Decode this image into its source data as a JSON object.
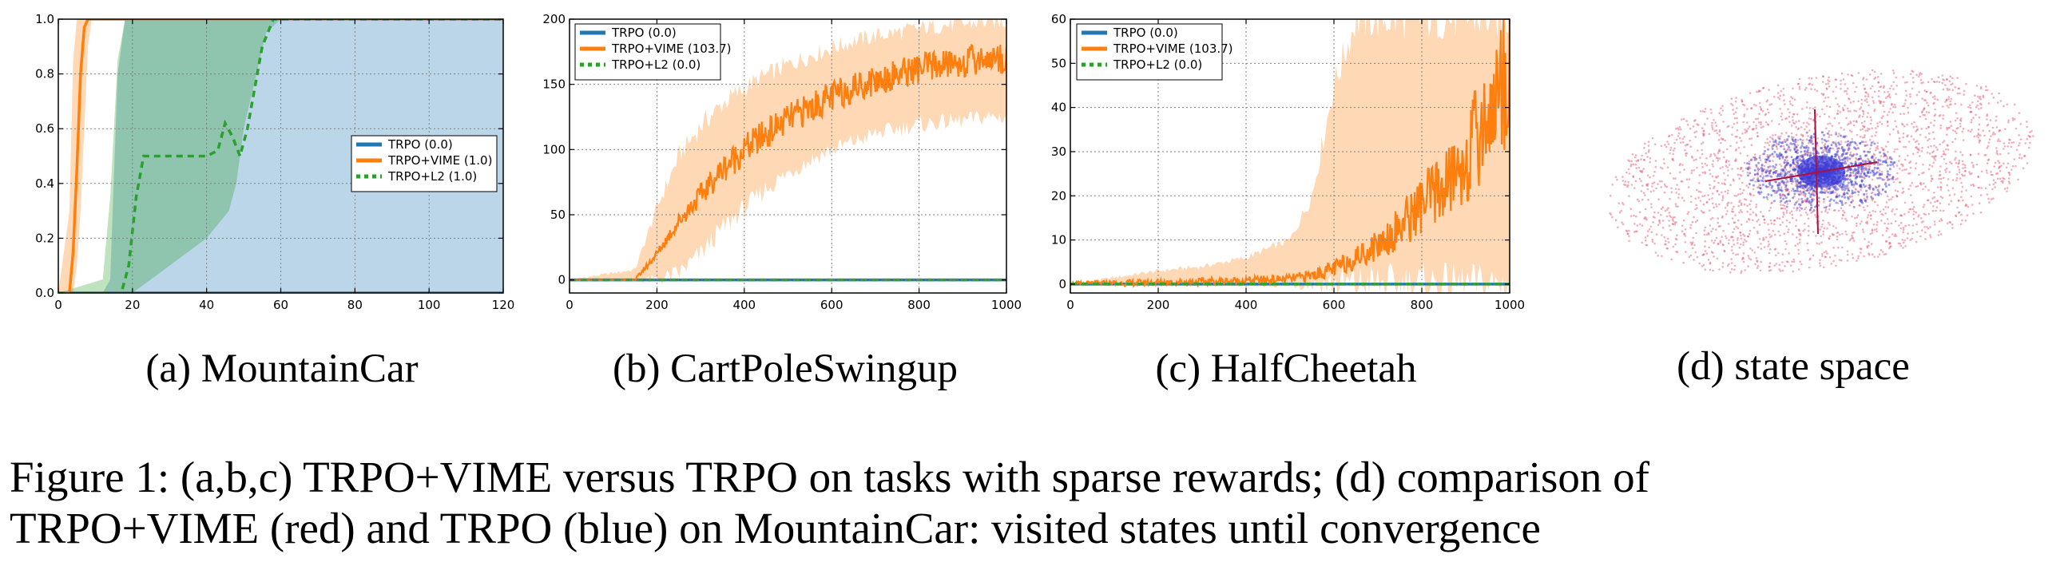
{
  "chart_data": [
    {
      "type": "line",
      "label": "(a) MountainCar",
      "xlim": [
        0,
        120
      ],
      "ylim": [
        0,
        1.0
      ],
      "xticks": [
        0,
        20,
        40,
        60,
        80,
        100,
        120
      ],
      "yticks": [
        0.0,
        0.2,
        0.4,
        0.6,
        0.8,
        1.0
      ],
      "grid": true,
      "legend_position": "center-right",
      "series": [
        {
          "name": "TRPO (0.0)",
          "color": "#1f77b4",
          "dash": false,
          "x": [
            0,
            120
          ],
          "y": [
            0,
            0
          ],
          "band_x": [
            0,
            12,
            14,
            16,
            18,
            20,
            50,
            52,
            120
          ],
          "band_lo": [
            0,
            0,
            0,
            0,
            0,
            0,
            0,
            0,
            0
          ],
          "band_hi": [
            0,
            0,
            0.05,
            0.8,
            1.0,
            1.0,
            1.0,
            1.0,
            1.0
          ]
        },
        {
          "name": "TRPO+VIME (1.0)",
          "color": "#ff7f0e",
          "dash": false,
          "x": [
            0,
            3,
            4,
            5,
            6,
            7,
            8,
            9,
            120
          ],
          "y": [
            0,
            0,
            0.15,
            0.45,
            0.8,
            0.97,
            1.0,
            1.0,
            1.0
          ],
          "band_x": [
            0,
            3,
            4,
            5,
            6,
            7,
            8,
            9,
            120
          ],
          "band_lo": [
            0,
            0,
            0,
            0.1,
            0.3,
            0.6,
            0.9,
            1.0,
            1.0
          ],
          "band_hi": [
            0,
            0.3,
            0.85,
            1.0,
            1.0,
            1.0,
            1.0,
            1.0,
            1.0
          ]
        },
        {
          "name": "TRPO+L2 (1.0)",
          "color": "#2ca02c",
          "dash": true,
          "x": [
            0,
            17,
            19,
            21,
            23,
            30,
            40,
            43,
            45,
            47,
            49,
            51,
            55,
            58,
            60,
            120
          ],
          "y": [
            0,
            0,
            0.1,
            0.35,
            0.5,
            0.5,
            0.5,
            0.52,
            0.62,
            0.57,
            0.5,
            0.6,
            0.9,
            1.0,
            1.0,
            1.0
          ],
          "band_x": [
            0,
            12,
            14,
            16,
            18,
            20,
            22,
            25,
            30,
            40,
            46,
            48,
            50,
            56,
            60,
            120
          ],
          "band_lo": [
            0,
            0,
            0,
            0,
            0,
            0,
            0.02,
            0.05,
            0.1,
            0.2,
            0.3,
            0.4,
            0.6,
            0.95,
            1.0,
            1.0
          ],
          "band_hi": [
            0,
            0.05,
            0.35,
            0.85,
            1.0,
            1.0,
            1.0,
            1.0,
            1.0,
            1.0,
            1.0,
            1.0,
            1.0,
            1.0,
            1.0,
            1.0
          ]
        }
      ]
    },
    {
      "type": "line",
      "label": "(b) CartPoleSwingup",
      "xlim": [
        0,
        1000
      ],
      "ylim": [
        -10,
        200
      ],
      "xticks": [
        0,
        200,
        400,
        600,
        800,
        1000
      ],
      "yticks": [
        0,
        50,
        100,
        150,
        200
      ],
      "grid": true,
      "legend_position": "top-left",
      "series": [
        {
          "name": "TRPO (0.0)",
          "color": "#1f77b4",
          "dash": false,
          "x": [
            0,
            1000
          ],
          "y": [
            0,
            0
          ]
        },
        {
          "name": "TRPO+VIME (103.7)",
          "color": "#ff7f0e",
          "dash": false,
          "x": [
            0,
            150,
            200,
            250,
            300,
            350,
            400,
            450,
            500,
            550,
            600,
            650,
            700,
            750,
            800,
            850,
            900,
            950,
            1000
          ],
          "y": [
            0,
            0,
            20,
            45,
            65,
            85,
            100,
            112,
            123,
            132,
            140,
            148,
            153,
            158,
            162,
            165,
            167,
            170,
            170
          ],
          "band_lo": [
            0,
            0,
            0,
            5,
            20,
            40,
            55,
            70,
            82,
            92,
            100,
            106,
            112,
            116,
            119,
            121,
            122,
            125,
            125
          ],
          "band_hi": [
            0,
            8,
            55,
            95,
            118,
            135,
            147,
            157,
            165,
            172,
            178,
            183,
            187,
            190,
            193,
            195,
            196,
            198,
            198
          ]
        },
        {
          "name": "TRPO+L2 (0.0)",
          "color": "#2ca02c",
          "dash": true,
          "x": [
            0,
            1000
          ],
          "y": [
            0,
            0
          ]
        }
      ]
    },
    {
      "type": "line",
      "label": "(c) HalfCheetah",
      "xlim": [
        0,
        1000
      ],
      "ylim": [
        -2,
        60
      ],
      "xticks": [
        0,
        200,
        400,
        600,
        800,
        1000
      ],
      "yticks": [
        0,
        10,
        20,
        30,
        40,
        50,
        60
      ],
      "grid": true,
      "legend_position": "top-left",
      "series": [
        {
          "name": "TRPO (0.0)",
          "color": "#1f77b4",
          "dash": false,
          "x": [
            0,
            1000
          ],
          "y": [
            0,
            0
          ]
        },
        {
          "name": "TRPO+VIME (103.7)",
          "color": "#ff7f0e",
          "dash": false,
          "x": [
            0,
            100,
            200,
            300,
            400,
            500,
            550,
            600,
            650,
            700,
            750,
            800,
            850,
            900,
            950,
            1000
          ],
          "y": [
            0,
            0.2,
            0.4,
            0.6,
            0.8,
            1.2,
            2,
            3.5,
            6,
            9,
            13,
            18,
            22,
            28,
            38,
            50
          ],
          "band_lo": [
            0,
            0,
            0,
            0,
            0,
            0,
            0,
            0,
            0,
            0,
            0,
            0,
            0,
            0,
            0,
            0
          ],
          "band_hi": [
            0,
            1.5,
            3,
            4,
            6,
            10,
            20,
            45,
            60,
            60,
            60,
            60,
            60,
            60,
            60,
            60
          ]
        },
        {
          "name": "TRPO+L2 (0.0)",
          "color": "#2ca02c",
          "dash": true,
          "x": [
            0,
            1000
          ],
          "y": [
            0,
            0
          ]
        }
      ]
    }
  ],
  "panel_d": {
    "label": "(d) state space",
    "colors": {
      "trpo_vime": "#e0506a",
      "trpo": "#3b3bd6"
    }
  },
  "caption": {
    "line1": "Figure 1: (a,b,c) TRPO+VIME versus TRPO on tasks with sparse rewards; (d) comparison of",
    "line2": "TRPO+VIME (red) and TRPO (blue) on MountainCar: visited states until convergence"
  }
}
